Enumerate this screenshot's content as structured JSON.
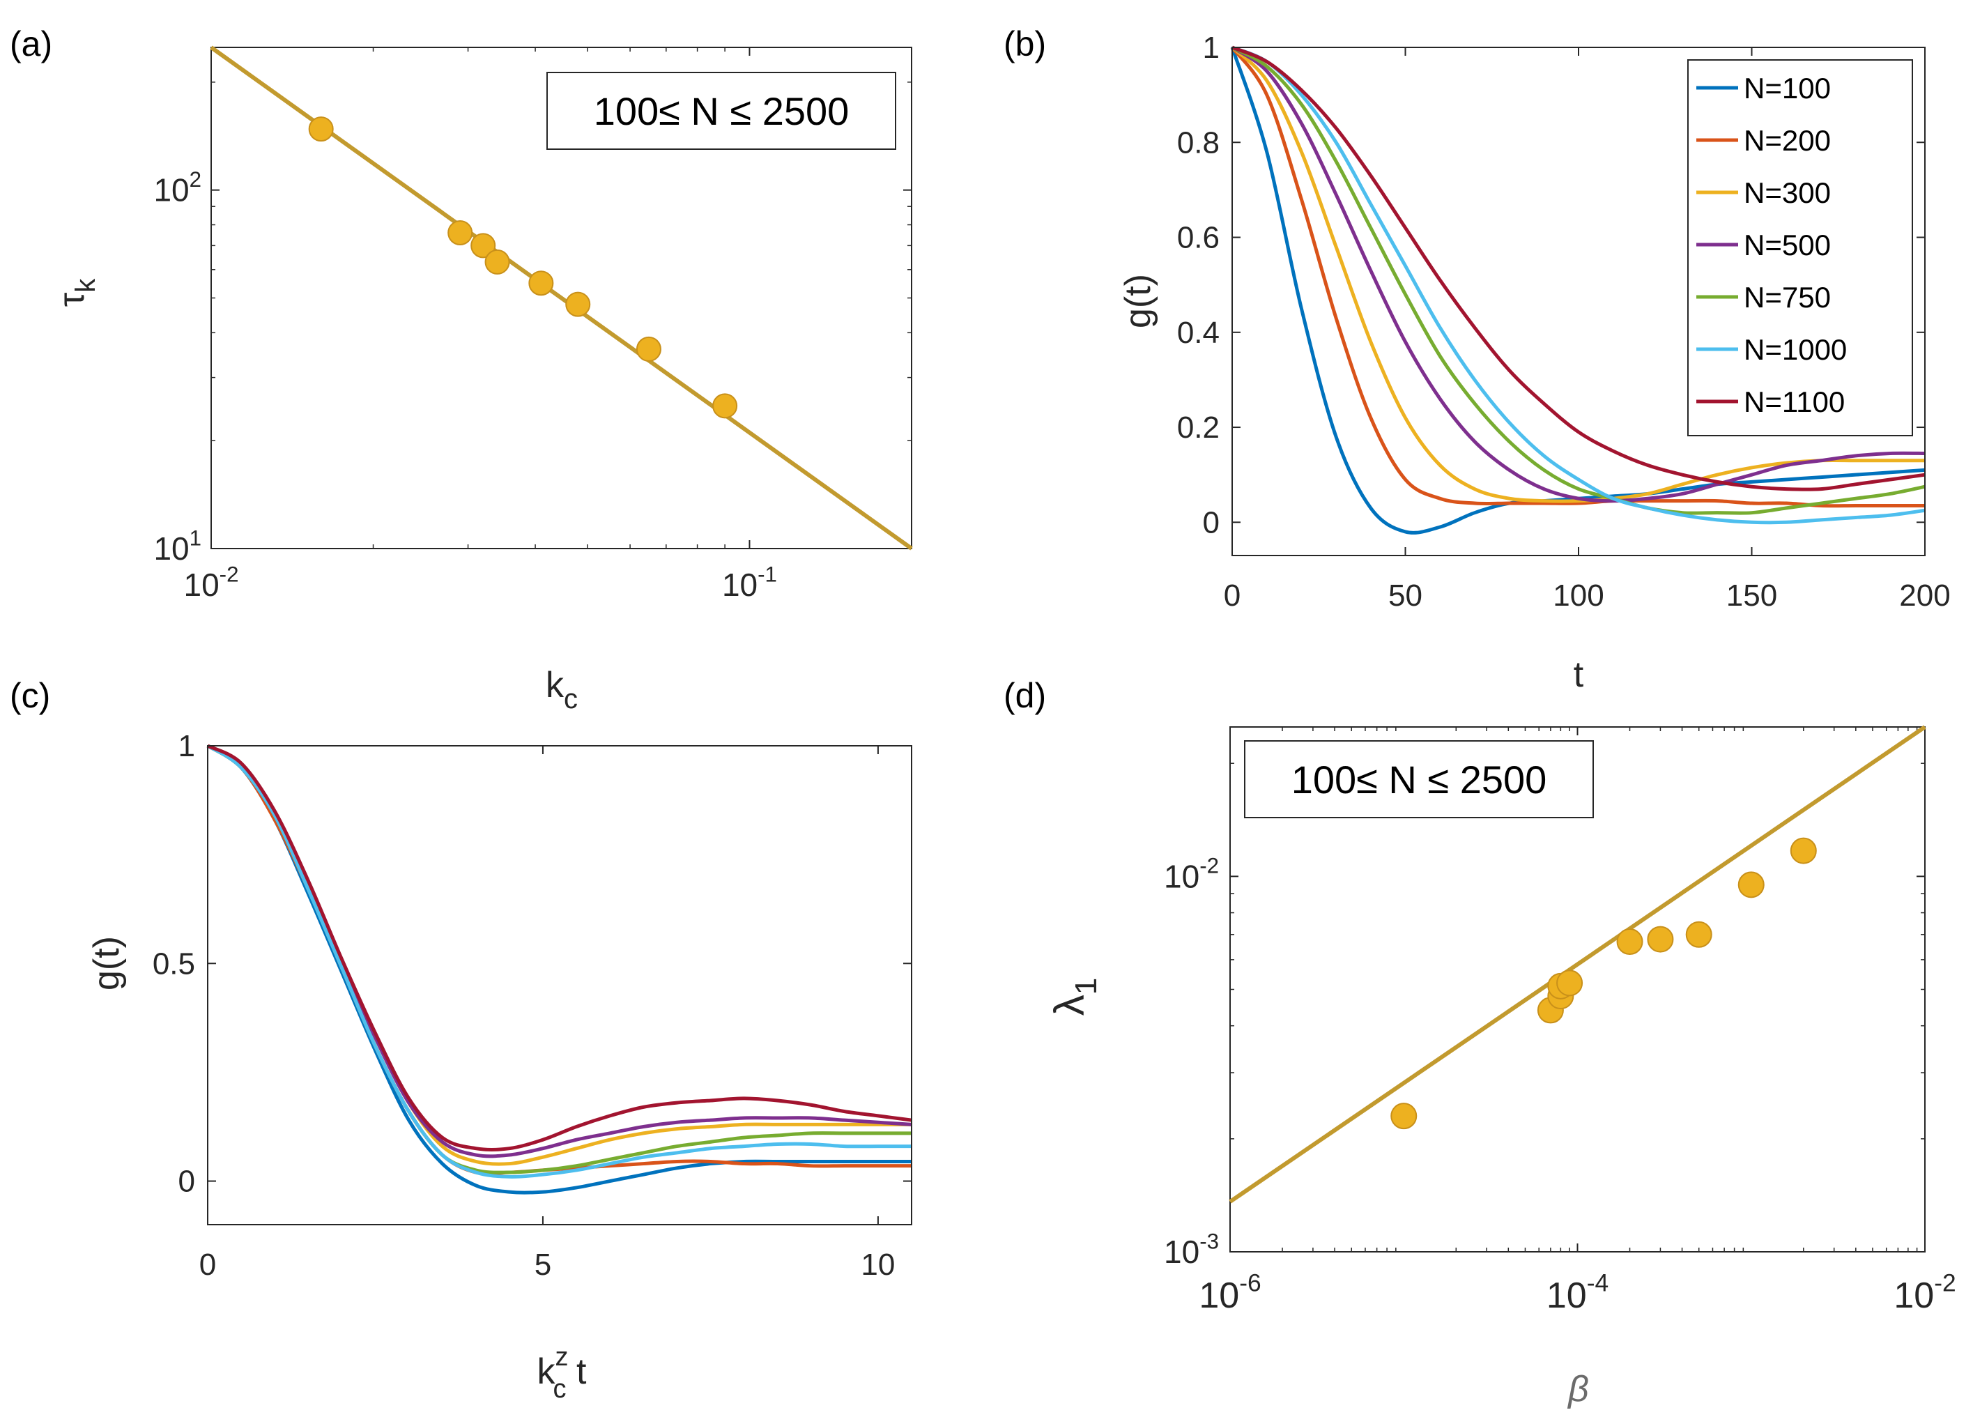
{
  "colors": {
    "fit": "#C29A2E",
    "marker": "#EDB120",
    "marker_edge": "#C8901A",
    "axis": "#262626",
    "series": [
      "#0072BD",
      "#D95319",
      "#EDB120",
      "#7E2F8E",
      "#77AC30",
      "#4DBEEE",
      "#A2142F"
    ]
  },
  "chart_data": [
    {
      "panel": "(a)",
      "type": "scatter",
      "xscale": "log",
      "yscale": "log",
      "xlim": [
        0.01,
        0.2
      ],
      "ylim": [
        10,
        250
      ],
      "xticks": [
        {
          "v": 0.01,
          "b": "10",
          "e": "-2"
        },
        {
          "v": 0.1,
          "b": "10",
          "e": "-1"
        }
      ],
      "yticks": [
        {
          "v": 10,
          "b": "10",
          "e": "1"
        },
        {
          "v": 100,
          "b": "10",
          "e": "2"
        }
      ],
      "xlabel": {
        "main": "k",
        "sub": "c"
      },
      "ylabel": {
        "main": "τ",
        "sub": "k"
      },
      "annotation": "100≤ N ≤ 2500",
      "points": {
        "x": [
          0.016,
          0.029,
          0.032,
          0.034,
          0.041,
          0.048,
          0.065,
          0.09
        ],
        "y": [
          148,
          76,
          70,
          63,
          55,
          48,
          36,
          25
        ]
      },
      "fit_line": {
        "x": [
          0.01,
          0.2
        ],
        "y": [
          250,
          10
        ]
      }
    },
    {
      "panel": "(b)",
      "type": "line",
      "xlim": [
        0,
        200
      ],
      "ylim": [
        -0.07,
        1
      ],
      "xticks": [
        0,
        50,
        100,
        150,
        200
      ],
      "yticks": [
        0,
        0.2,
        0.4,
        0.6,
        0.8,
        1
      ],
      "xlabel": "t",
      "ylabel": "g(t)",
      "legend": [
        "N=100",
        "N=200",
        "N=300",
        "N=500",
        "N=750",
        "N=1000",
        "N=1100"
      ],
      "legend_position": "top-right",
      "x": [
        0,
        10,
        20,
        30,
        40,
        50,
        60,
        70,
        80,
        90,
        100,
        110,
        120,
        130,
        140,
        150,
        160,
        170,
        180,
        190,
        200
      ],
      "series": [
        {
          "name": "N=100",
          "values": [
            1,
            0.78,
            0.45,
            0.18,
            0.03,
            -0.02,
            -0.01,
            0.02,
            0.04,
            0.045,
            0.05,
            0.055,
            0.06,
            0.07,
            0.08,
            0.085,
            0.09,
            0.095,
            0.1,
            0.105,
            0.11
          ]
        },
        {
          "name": "N=200",
          "values": [
            1,
            0.9,
            0.68,
            0.43,
            0.22,
            0.09,
            0.05,
            0.04,
            0.04,
            0.04,
            0.04,
            0.045,
            0.045,
            0.045,
            0.045,
            0.04,
            0.04,
            0.035,
            0.035,
            0.035,
            0.035
          ]
        },
        {
          "name": "N=300",
          "values": [
            1,
            0.93,
            0.78,
            0.58,
            0.38,
            0.22,
            0.12,
            0.07,
            0.05,
            0.045,
            0.045,
            0.05,
            0.06,
            0.08,
            0.1,
            0.115,
            0.125,
            0.13,
            0.13,
            0.13,
            0.13
          ]
        },
        {
          "name": "N=500",
          "values": [
            1,
            0.95,
            0.84,
            0.69,
            0.53,
            0.38,
            0.26,
            0.17,
            0.11,
            0.07,
            0.05,
            0.045,
            0.05,
            0.06,
            0.08,
            0.1,
            0.12,
            0.13,
            0.14,
            0.145,
            0.145
          ]
        },
        {
          "name": "N=750",
          "values": [
            1,
            0.96,
            0.88,
            0.76,
            0.62,
            0.48,
            0.35,
            0.25,
            0.17,
            0.11,
            0.07,
            0.05,
            0.03,
            0.02,
            0.02,
            0.02,
            0.03,
            0.04,
            0.05,
            0.06,
            0.075
          ]
        },
        {
          "name": "N=1000",
          "values": [
            1,
            0.97,
            0.9,
            0.8,
            0.67,
            0.54,
            0.41,
            0.3,
            0.21,
            0.14,
            0.09,
            0.05,
            0.03,
            0.015,
            0.005,
            0.0,
            0.0,
            0.005,
            0.01,
            0.015,
            0.025
          ]
        },
        {
          "name": "N=1100",
          "values": [
            1,
            0.97,
            0.91,
            0.83,
            0.73,
            0.62,
            0.51,
            0.41,
            0.32,
            0.25,
            0.19,
            0.15,
            0.12,
            0.1,
            0.085,
            0.075,
            0.07,
            0.07,
            0.08,
            0.09,
            0.1
          ]
        }
      ]
    },
    {
      "panel": "(c)",
      "type": "line",
      "xlim": [
        0,
        10.5
      ],
      "ylim": [
        -0.1,
        1
      ],
      "xticks": [
        0,
        5,
        10
      ],
      "yticks": [
        0,
        0.5,
        1
      ],
      "xlabel": {
        "main": "k",
        "sub": "c",
        "sup": "z",
        "tail": " t"
      },
      "ylabel": "g(t)",
      "x": [
        0,
        0.5,
        1,
        1.5,
        2,
        2.5,
        3,
        3.5,
        4,
        4.5,
        5,
        5.5,
        6,
        6.5,
        7,
        7.5,
        8,
        8.5,
        9,
        9.5,
        10,
        10.5
      ],
      "series": [
        {
          "name": "N=100",
          "values": [
            1,
            0.95,
            0.83,
            0.66,
            0.48,
            0.3,
            0.14,
            0.04,
            -0.01,
            -0.025,
            -0.025,
            -0.015,
            0.0,
            0.015,
            0.03,
            0.04,
            0.045,
            0.045,
            0.045,
            0.045,
            0.045,
            0.045
          ]
        },
        {
          "name": "N=200",
          "values": [
            1,
            0.95,
            0.83,
            0.67,
            0.49,
            0.31,
            0.16,
            0.06,
            0.02,
            0.02,
            0.025,
            0.03,
            0.035,
            0.04,
            0.045,
            0.045,
            0.04,
            0.04,
            0.035,
            0.035,
            0.035,
            0.035
          ]
        },
        {
          "name": "N=300",
          "values": [
            1,
            0.95,
            0.84,
            0.68,
            0.5,
            0.33,
            0.18,
            0.08,
            0.045,
            0.04,
            0.055,
            0.075,
            0.095,
            0.11,
            0.12,
            0.125,
            0.13,
            0.13,
            0.13,
            0.13,
            0.13,
            0.13
          ]
        },
        {
          "name": "N=500",
          "values": [
            1,
            0.95,
            0.84,
            0.68,
            0.5,
            0.33,
            0.18,
            0.09,
            0.06,
            0.06,
            0.075,
            0.095,
            0.11,
            0.125,
            0.135,
            0.14,
            0.145,
            0.145,
            0.145,
            0.14,
            0.135,
            0.13
          ]
        },
        {
          "name": "N=750",
          "values": [
            1,
            0.95,
            0.84,
            0.67,
            0.49,
            0.31,
            0.16,
            0.06,
            0.025,
            0.02,
            0.025,
            0.035,
            0.05,
            0.065,
            0.08,
            0.09,
            0.1,
            0.105,
            0.11,
            0.11,
            0.11,
            0.11
          ]
        },
        {
          "name": "N=1000",
          "values": [
            1,
            0.95,
            0.84,
            0.67,
            0.49,
            0.31,
            0.16,
            0.06,
            0.02,
            0.01,
            0.015,
            0.025,
            0.04,
            0.055,
            0.065,
            0.075,
            0.08,
            0.085,
            0.085,
            0.08,
            0.08,
            0.08
          ]
        },
        {
          "name": "N=1100",
          "values": [
            1,
            0.96,
            0.85,
            0.69,
            0.51,
            0.34,
            0.19,
            0.1,
            0.075,
            0.075,
            0.095,
            0.125,
            0.15,
            0.17,
            0.18,
            0.185,
            0.19,
            0.185,
            0.175,
            0.16,
            0.15,
            0.14
          ]
        }
      ]
    },
    {
      "panel": "(d)",
      "type": "scatter",
      "xscale": "log",
      "yscale": "log",
      "xlim": [
        1e-06,
        0.01
      ],
      "ylim": [
        0.001,
        0.025
      ],
      "xticks": [
        {
          "v": 1e-06,
          "b": "10",
          "e": "-6"
        },
        {
          "v": 0.0001,
          "b": "10",
          "e": "-4"
        },
        {
          "v": 0.01,
          "b": "10",
          "e": "-2"
        }
      ],
      "yticks": [
        {
          "v": 0.001,
          "b": "10",
          "e": "-3"
        },
        {
          "v": 0.01,
          "b": "10",
          "e": "-2"
        }
      ],
      "xlabel": "β",
      "ylabel": {
        "main": "λ",
        "sub": "1"
      },
      "annotation": "100≤ N ≤ 2500",
      "points": {
        "x": [
          1e-05,
          7e-05,
          8e-05,
          8e-05,
          9e-05,
          0.0002,
          0.0003,
          0.0005,
          0.001,
          0.002
        ],
        "y": [
          0.0023,
          0.0044,
          0.0048,
          0.0051,
          0.0052,
          0.0067,
          0.0068,
          0.007,
          0.0095,
          0.0117
        ]
      },
      "fit_line": {
        "x": [
          1e-06,
          0.01
        ],
        "y": [
          0.00136,
          0.025
        ]
      }
    }
  ]
}
